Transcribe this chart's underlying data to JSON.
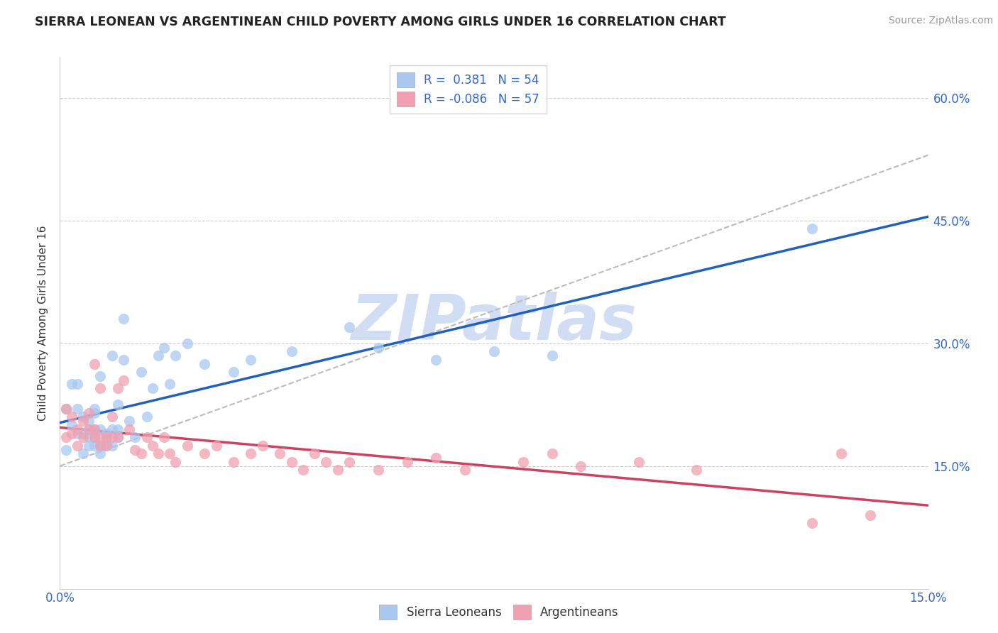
{
  "title": "SIERRA LEONEAN VS ARGENTINEAN CHILD POVERTY AMONG GIRLS UNDER 16 CORRELATION CHART",
  "source": "Source: ZipAtlas.com",
  "ylabel": "Child Poverty Among Girls Under 16",
  "xlim": [
    0,
    0.15
  ],
  "ylim": [
    0,
    0.65
  ],
  "blue_color": "#A8C8F0",
  "pink_color": "#F0A0B0",
  "blue_line_color": "#2060C0",
  "pink_line_color": "#D04060",
  "dashed_line_color": "#BBBBBB",
  "watermark_color": "#C8D8F0",
  "legend_r1": "R =  0.381   N = 54",
  "legend_r2": "R = -0.086   N = 57",
  "sierra_x": [
    0.001,
    0.001,
    0.002,
    0.002,
    0.003,
    0.003,
    0.003,
    0.004,
    0.004,
    0.004,
    0.005,
    0.005,
    0.005,
    0.005,
    0.006,
    0.006,
    0.006,
    0.006,
    0.006,
    0.007,
    0.007,
    0.007,
    0.007,
    0.008,
    0.008,
    0.008,
    0.009,
    0.009,
    0.009,
    0.01,
    0.01,
    0.01,
    0.011,
    0.011,
    0.012,
    0.013,
    0.014,
    0.015,
    0.016,
    0.017,
    0.018,
    0.019,
    0.02,
    0.022,
    0.025,
    0.03,
    0.033,
    0.04,
    0.05,
    0.055,
    0.065,
    0.075,
    0.085,
    0.13
  ],
  "sierra_y": [
    0.22,
    0.17,
    0.2,
    0.25,
    0.19,
    0.22,
    0.25,
    0.21,
    0.165,
    0.19,
    0.195,
    0.205,
    0.185,
    0.175,
    0.175,
    0.185,
    0.195,
    0.215,
    0.22,
    0.165,
    0.175,
    0.195,
    0.26,
    0.175,
    0.185,
    0.19,
    0.175,
    0.195,
    0.285,
    0.185,
    0.195,
    0.225,
    0.28,
    0.33,
    0.205,
    0.185,
    0.265,
    0.21,
    0.245,
    0.285,
    0.295,
    0.25,
    0.285,
    0.3,
    0.275,
    0.265,
    0.28,
    0.29,
    0.32,
    0.295,
    0.28,
    0.29,
    0.285,
    0.44
  ],
  "arg_x": [
    0.001,
    0.001,
    0.002,
    0.002,
    0.003,
    0.003,
    0.004,
    0.004,
    0.005,
    0.005,
    0.006,
    0.006,
    0.006,
    0.007,
    0.007,
    0.007,
    0.008,
    0.008,
    0.009,
    0.009,
    0.01,
    0.01,
    0.011,
    0.012,
    0.013,
    0.014,
    0.015,
    0.016,
    0.017,
    0.018,
    0.019,
    0.02,
    0.022,
    0.025,
    0.027,
    0.03,
    0.033,
    0.035,
    0.038,
    0.04,
    0.042,
    0.044,
    0.046,
    0.048,
    0.05,
    0.055,
    0.06,
    0.065,
    0.07,
    0.08,
    0.085,
    0.09,
    0.1,
    0.11,
    0.13,
    0.135,
    0.14
  ],
  "arg_y": [
    0.22,
    0.185,
    0.19,
    0.21,
    0.175,
    0.195,
    0.205,
    0.185,
    0.195,
    0.215,
    0.185,
    0.195,
    0.275,
    0.175,
    0.185,
    0.245,
    0.185,
    0.175,
    0.185,
    0.21,
    0.185,
    0.245,
    0.255,
    0.195,
    0.17,
    0.165,
    0.185,
    0.175,
    0.165,
    0.185,
    0.165,
    0.155,
    0.175,
    0.165,
    0.175,
    0.155,
    0.165,
    0.175,
    0.165,
    0.155,
    0.145,
    0.165,
    0.155,
    0.145,
    0.155,
    0.145,
    0.155,
    0.16,
    0.145,
    0.155,
    0.165,
    0.15,
    0.155,
    0.145,
    0.08,
    0.165,
    0.09
  ]
}
